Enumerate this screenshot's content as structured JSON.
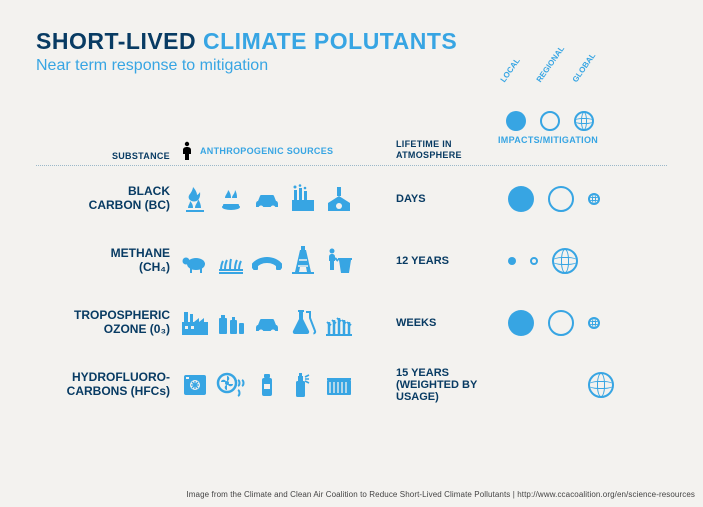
{
  "title": {
    "part1": "SHORT-LIVED",
    "part2": "CLIMATE POLUTANTS"
  },
  "subtitle": "Near term response to mitigation",
  "headers": {
    "substance": "SUBSTANCE",
    "sources": "ANTHROPOGENIC SOURCES",
    "lifetime": "LIFETIME IN ATMOSPHERE",
    "impacts": "IMPACTS/MITIGATION",
    "scales": [
      "LOCAL",
      "REGIONAL",
      "GLOBAL"
    ]
  },
  "colors": {
    "primary_dark": "#083b63",
    "primary_light": "#37a5e3",
    "background": "#f3f2ef",
    "divider": "#9bb8c9"
  },
  "legend_circles": [
    {
      "type": "filled",
      "size": "md"
    },
    {
      "type": "outline",
      "size": "md"
    },
    {
      "type": "globe",
      "size": "md"
    }
  ],
  "rows": [
    {
      "name_l1": "BLACK",
      "name_l2": "CARBON (BC)",
      "sources": [
        "burn-field",
        "cookstove",
        "car",
        "industry",
        "kiln"
      ],
      "lifetime": "DAYS",
      "impacts": [
        {
          "type": "filled",
          "size": "lg"
        },
        {
          "type": "outline",
          "size": "lg"
        },
        {
          "type": "globe",
          "size": "sm"
        }
      ]
    },
    {
      "name_l1": "METHANE",
      "name_l2": "(CH₄)",
      "sources": [
        "livestock",
        "rice-paddy",
        "pipeline",
        "oil-rig",
        "waste-bin"
      ],
      "lifetime": "12 YEARS",
      "impacts": [
        {
          "type": "filled",
          "size": "xs"
        },
        {
          "type": "outline",
          "size": "xs"
        },
        {
          "type": "globe",
          "size": "lg"
        }
      ]
    },
    {
      "name_l1": "TROPOSPHERIC",
      "name_l2": "OZONE (0₃)",
      "sources": [
        "factory",
        "fuel-cans",
        "car",
        "chemical-flask",
        "crops"
      ],
      "lifetime": "WEEKS",
      "impacts": [
        {
          "type": "filled",
          "size": "lg"
        },
        {
          "type": "outline",
          "size": "lg"
        },
        {
          "type": "globe",
          "size": "sm"
        }
      ]
    },
    {
      "name_l1": "HYDROFLUORO-",
      "name_l2": "CARBONS (HFCs)",
      "sources": [
        "fridge",
        "fan-coil",
        "canister",
        "spray-can",
        "container"
      ],
      "lifetime": "15 YEARS (WEIGHTED BY USAGE)",
      "impacts": [
        null,
        null,
        {
          "type": "globe",
          "size": "lg"
        }
      ]
    }
  ],
  "footer": "Image from the Climate and Clean Air Coalition to Reduce Short-Lived Climate Pollutants  |  http://www.ccacoalition.org/en/science-resources"
}
